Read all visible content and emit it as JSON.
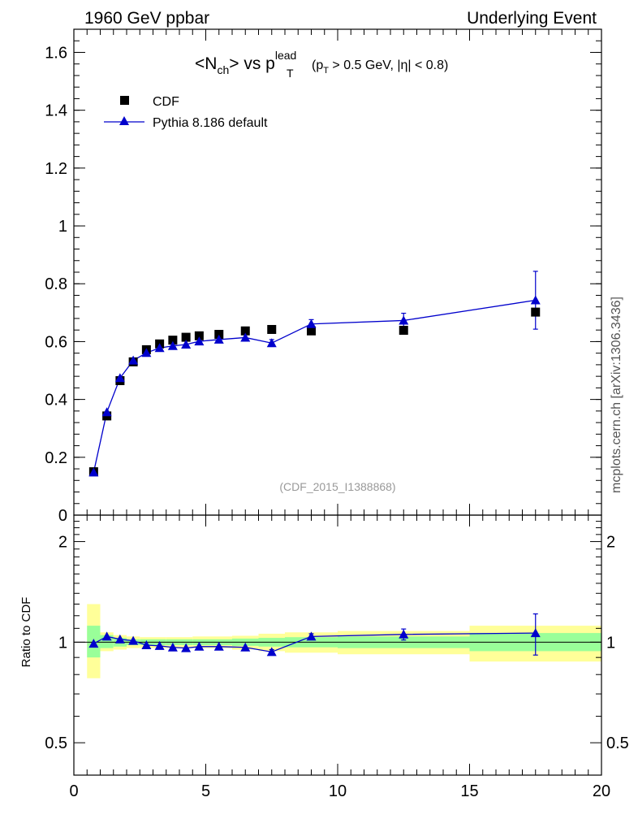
{
  "header": {
    "left": "1960 GeV ppbar",
    "right": "Underlying Event"
  },
  "side_label": "mcplots.cern.ch [arXiv:1306.3436]",
  "watermark": "(CDF_2015_I1388868)",
  "colors": {
    "data": "#000000",
    "mc": "#0000cc",
    "band_inner": "#99ff99",
    "band_outer": "#ffff99"
  },
  "chart_data": [
    {
      "type": "scatter",
      "panel": "main",
      "title": {
        "open": "<N",
        "sub1": "ch",
        "mid": "> vs p",
        "sup": "lead",
        "sub2": "T",
        "cut_open": "(p",
        "cut_sub": "T",
        "cut_rest": " > 0.5 GeV, |η| < 0.8)"
      },
      "xlim": [
        0,
        20
      ],
      "ylim": [
        0,
        1.68
      ],
      "yticks": [
        "0",
        "0.2",
        "0.4",
        "0.6",
        "0.8",
        "1",
        "1.2",
        "1.4",
        "1.6"
      ],
      "ytick_values": [
        0,
        0.2,
        0.4,
        0.6,
        0.8,
        1.0,
        1.2,
        1.4,
        1.6
      ],
      "legend_position": "top-left",
      "series": [
        {
          "name": "CDF",
          "marker": "square",
          "x": [
            0.75,
            1.25,
            1.75,
            2.25,
            2.75,
            3.25,
            3.75,
            4.25,
            4.75,
            5.5,
            6.5,
            7.5,
            9.0,
            12.5,
            17.5
          ],
          "y": [
            0.15,
            0.343,
            0.465,
            0.53,
            0.572,
            0.592,
            0.605,
            0.615,
            0.62,
            0.625,
            0.637,
            0.642,
            0.637,
            0.639,
            0.702
          ]
        },
        {
          "name": "Pythia 8.186 default",
          "marker": "triangle",
          "x": [
            0.75,
            1.25,
            1.75,
            2.25,
            2.75,
            3.25,
            3.75,
            4.25,
            4.75,
            5.5,
            6.5,
            7.5,
            9.0,
            12.5,
            17.5
          ],
          "y": [
            0.148,
            0.356,
            0.474,
            0.535,
            0.561,
            0.578,
            0.585,
            0.59,
            0.601,
            0.607,
            0.614,
            0.595,
            0.661,
            0.673,
            0.743
          ],
          "yerr": [
            0,
            0,
            0,
            0,
            0,
            0,
            0,
            0,
            0,
            0,
            0,
            0.012,
            0.015,
            0.025,
            0.1
          ]
        }
      ]
    },
    {
      "type": "scatter",
      "panel": "ratio",
      "ylabel": "Ratio to CDF",
      "xlim": [
        0,
        20
      ],
      "ylim": [
        0.4,
        2.4
      ],
      "log_y": true,
      "xticks": [
        "0",
        "5",
        "10",
        "15",
        "20"
      ],
      "xtick_values": [
        0,
        5,
        10,
        15,
        20
      ],
      "yticks": [
        "0.5",
        "1",
        "2"
      ],
      "ytick_values": [
        0.5,
        1,
        2
      ],
      "bands": [
        {
          "xlo": 0.5,
          "xhi": 1.0,
          "inner": [
            0.9,
            1.12
          ],
          "outer": [
            0.78,
            1.3
          ]
        },
        {
          "xlo": 1.0,
          "xhi": 1.5,
          "inner": [
            0.96,
            1.05
          ],
          "outer": [
            0.94,
            1.07
          ]
        },
        {
          "xlo": 1.5,
          "xhi": 2.0,
          "inner": [
            0.97,
            1.03
          ],
          "outer": [
            0.95,
            1.05
          ]
        },
        {
          "xlo": 2.0,
          "xhi": 2.5,
          "inner": [
            0.98,
            1.02
          ],
          "outer": [
            0.96,
            1.04
          ]
        },
        {
          "xlo": 2.5,
          "xhi": 3.0,
          "inner": [
            0.98,
            1.02
          ],
          "outer": [
            0.96,
            1.035
          ]
        },
        {
          "xlo": 3.0,
          "xhi": 3.5,
          "inner": [
            0.98,
            1.02
          ],
          "outer": [
            0.96,
            1.035
          ]
        },
        {
          "xlo": 3.5,
          "xhi": 4.0,
          "inner": [
            0.98,
            1.02
          ],
          "outer": [
            0.96,
            1.035
          ]
        },
        {
          "xlo": 4.0,
          "xhi": 4.5,
          "inner": [
            0.98,
            1.02
          ],
          "outer": [
            0.96,
            1.035
          ]
        },
        {
          "xlo": 4.5,
          "xhi": 5.0,
          "inner": [
            0.98,
            1.02
          ],
          "outer": [
            0.96,
            1.04
          ]
        },
        {
          "xlo": 5.0,
          "xhi": 6.0,
          "inner": [
            0.98,
            1.02
          ],
          "outer": [
            0.96,
            1.04
          ]
        },
        {
          "xlo": 6.0,
          "xhi": 7.0,
          "inner": [
            0.975,
            1.025
          ],
          "outer": [
            0.95,
            1.045
          ]
        },
        {
          "xlo": 7.0,
          "xhi": 8.0,
          "inner": [
            0.97,
            1.03
          ],
          "outer": [
            0.94,
            1.06
          ]
        },
        {
          "xlo": 8.0,
          "xhi": 10.0,
          "inner": [
            0.965,
            1.035
          ],
          "outer": [
            0.93,
            1.07
          ]
        },
        {
          "xlo": 10.0,
          "xhi": 15.0,
          "inner": [
            0.96,
            1.04
          ],
          "outer": [
            0.92,
            1.08
          ]
        },
        {
          "xlo": 15.0,
          "xhi": 20.0,
          "inner": [
            0.94,
            1.065
          ],
          "outer": [
            0.875,
            1.12
          ]
        }
      ],
      "series": [
        {
          "name": "Pythia 8.186 default",
          "x": [
            0.75,
            1.25,
            1.75,
            2.25,
            2.75,
            3.25,
            3.75,
            4.25,
            4.75,
            5.5,
            6.5,
            7.5,
            9.0,
            12.5,
            17.5
          ],
          "y": [
            0.99,
            1.04,
            1.02,
            1.01,
            0.98,
            0.975,
            0.965,
            0.96,
            0.97,
            0.97,
            0.965,
            0.935,
            1.04,
            1.055,
            1.065
          ],
          "yerr": [
            0,
            0,
            0,
            0,
            0,
            0,
            0,
            0,
            0,
            0,
            0,
            0.015,
            0.02,
            0.04,
            0.15
          ]
        }
      ]
    }
  ]
}
